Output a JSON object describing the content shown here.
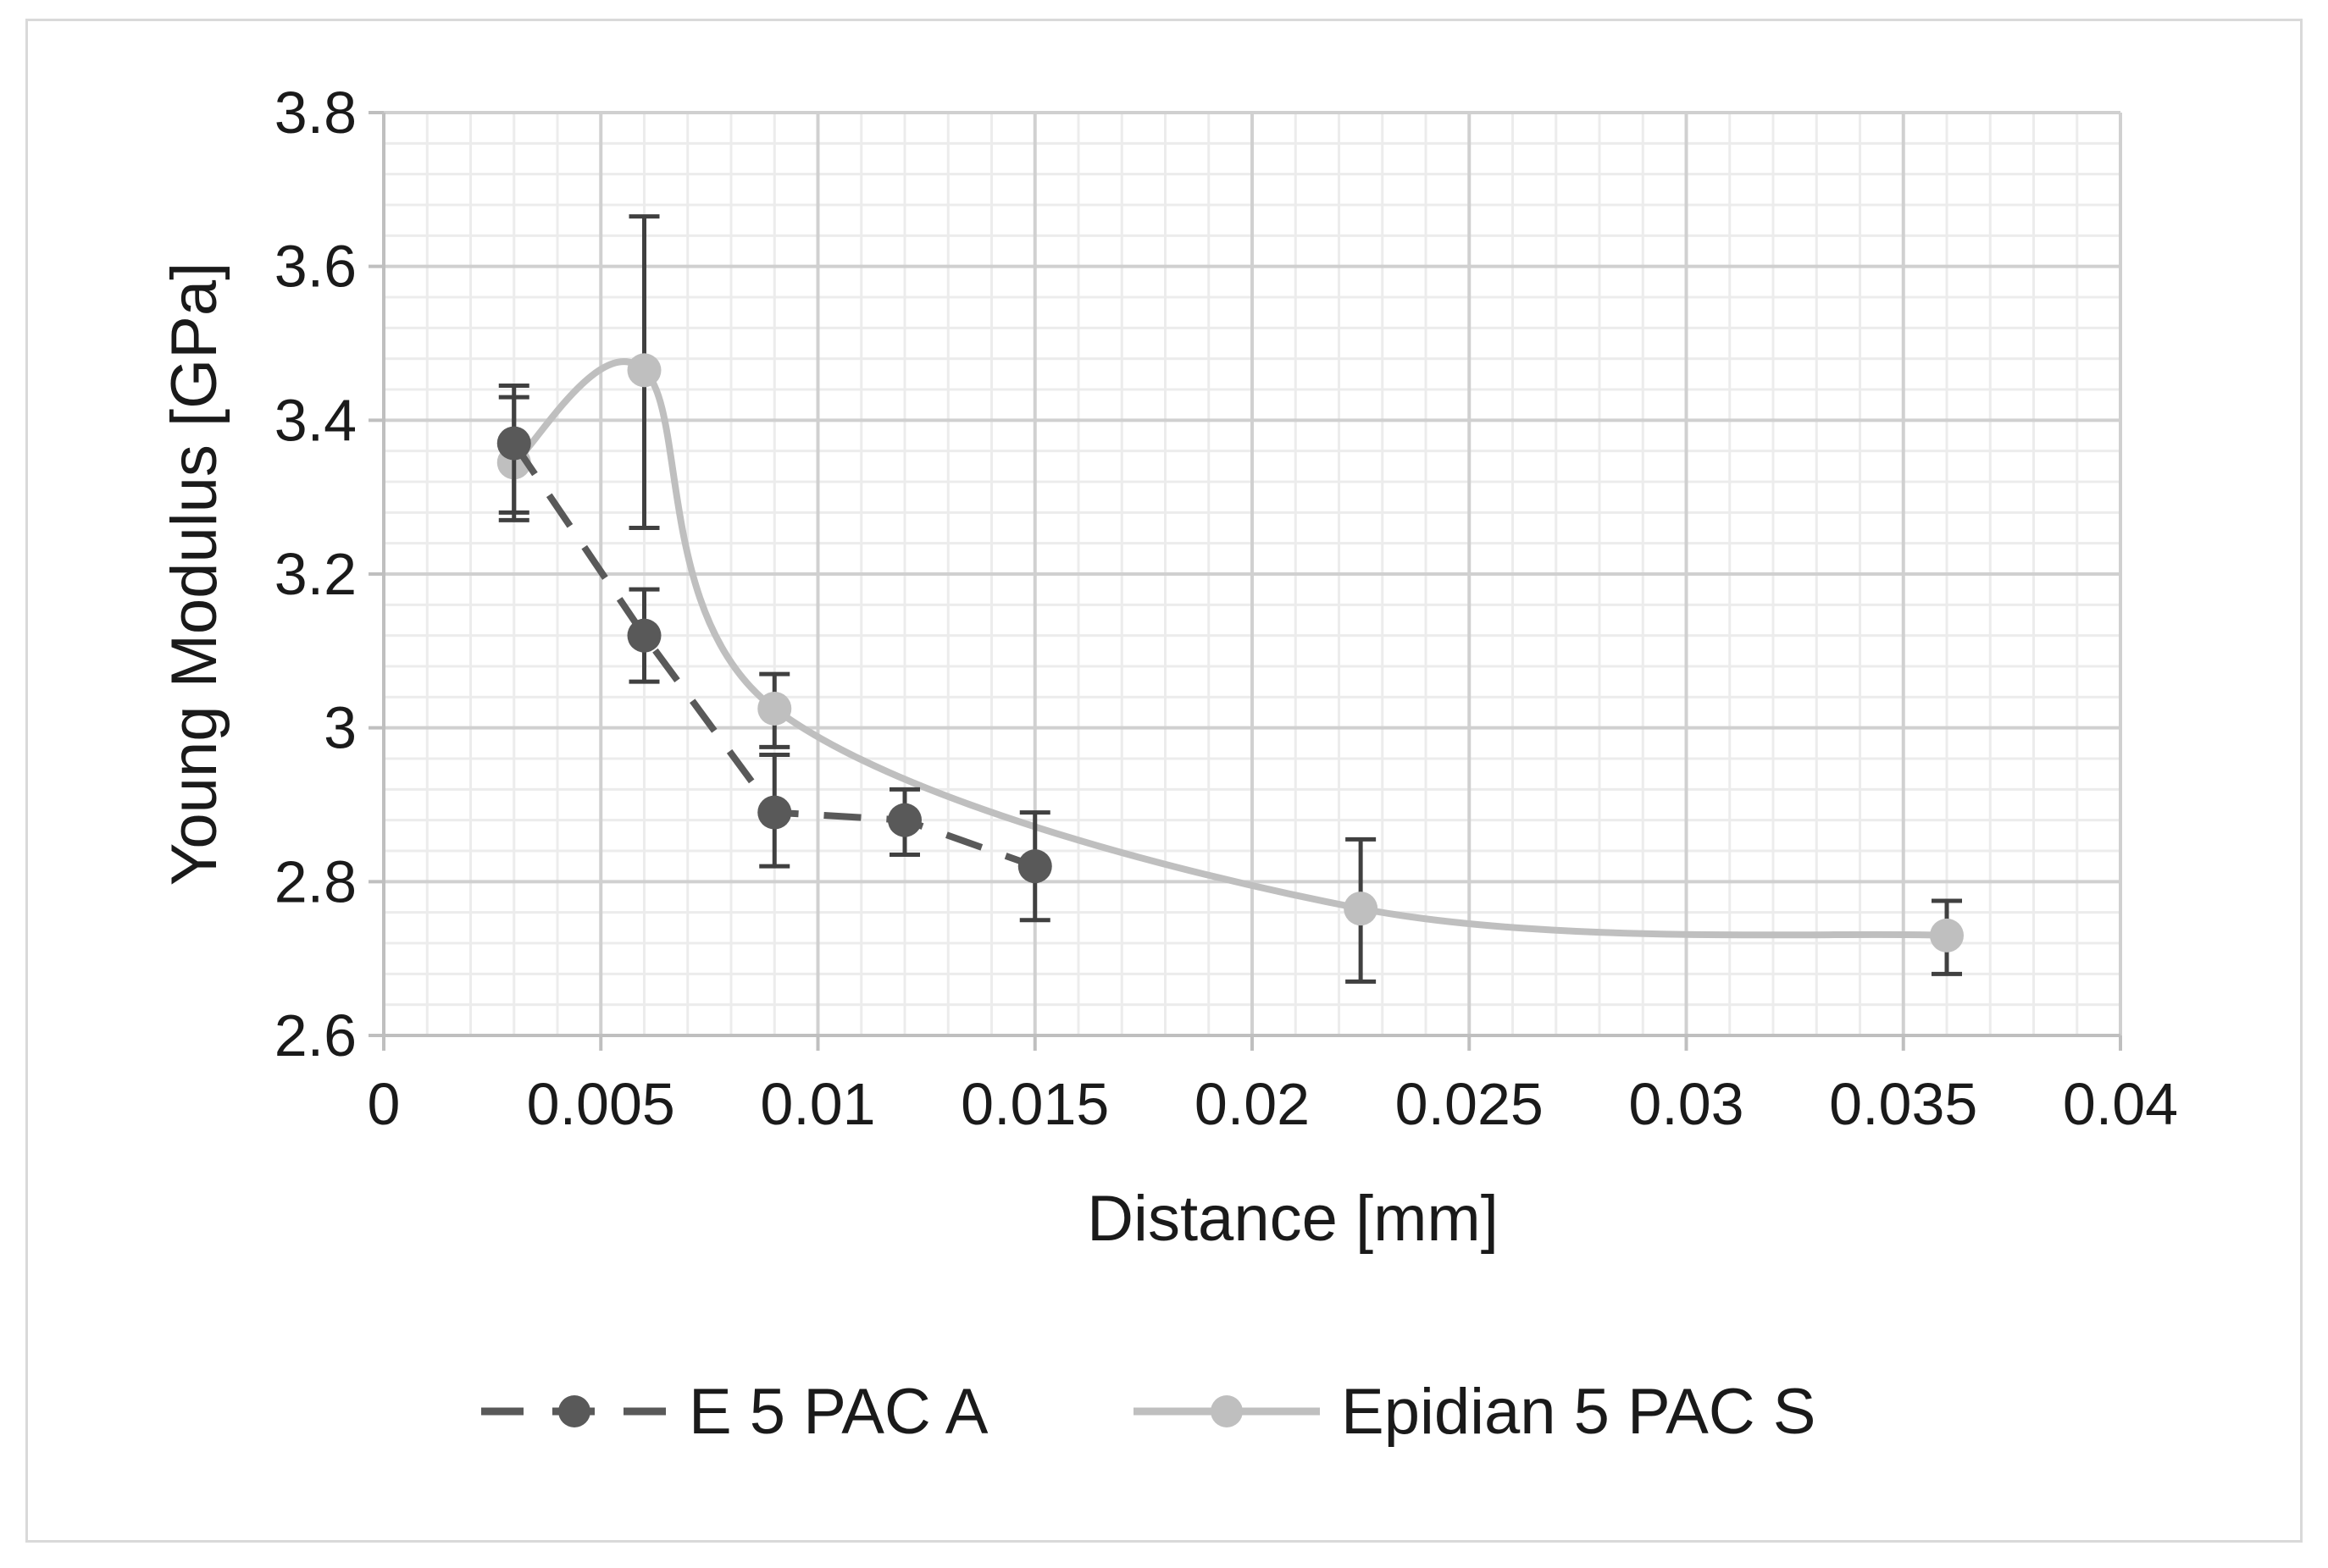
{
  "chart_data": {
    "type": "line",
    "title": "",
    "xlabel": "Distance [mm]",
    "ylabel": "Young Modulus  [GPa]",
    "xlim": [
      0,
      0.04
    ],
    "ylim": [
      2.6,
      3.8
    ],
    "x_ticks": [
      0,
      0.005,
      0.01,
      0.015,
      0.02,
      0.025,
      0.03,
      0.035,
      0.04
    ],
    "x_tick_labels": [
      "0",
      "0.005",
      "0.01",
      "0.015",
      "0.02",
      "0.025",
      "0.03",
      "0.035",
      "0.04"
    ],
    "y_ticks": [
      2.6,
      2.8,
      3.0,
      3.2,
      3.4,
      3.6,
      3.8
    ],
    "y_tick_labels": [
      "2.6",
      "2.8",
      "3",
      "3.2",
      "3.4",
      "3.6",
      "3.8"
    ],
    "grid": true,
    "minor_grid": true,
    "legend_position": "bottom",
    "series": [
      {
        "name": "E 5 PAC A",
        "line_style": "dashed",
        "smooth": false,
        "color": "#595959",
        "x": [
          0.003,
          0.006,
          0.009,
          0.012,
          0.015
        ],
        "y": [
          3.37,
          3.12,
          2.89,
          2.88,
          2.82
        ],
        "err_upper": [
          3.445,
          3.18,
          2.965,
          2.92,
          2.89
        ],
        "err_lower": [
          3.28,
          3.06,
          2.82,
          2.835,
          2.75
        ]
      },
      {
        "name": "Epidian 5 PAC S",
        "line_style": "solid",
        "smooth": true,
        "color": "#bfbfbf",
        "x": [
          0.003,
          0.006,
          0.009,
          0.0225,
          0.036
        ],
        "y": [
          3.345,
          3.465,
          3.025,
          2.765,
          2.73
        ],
        "err_upper": [
          3.43,
          3.665,
          3.07,
          2.855,
          2.775
        ],
        "err_lower": [
          3.27,
          3.26,
          2.975,
          2.67,
          2.68
        ]
      }
    ]
  }
}
